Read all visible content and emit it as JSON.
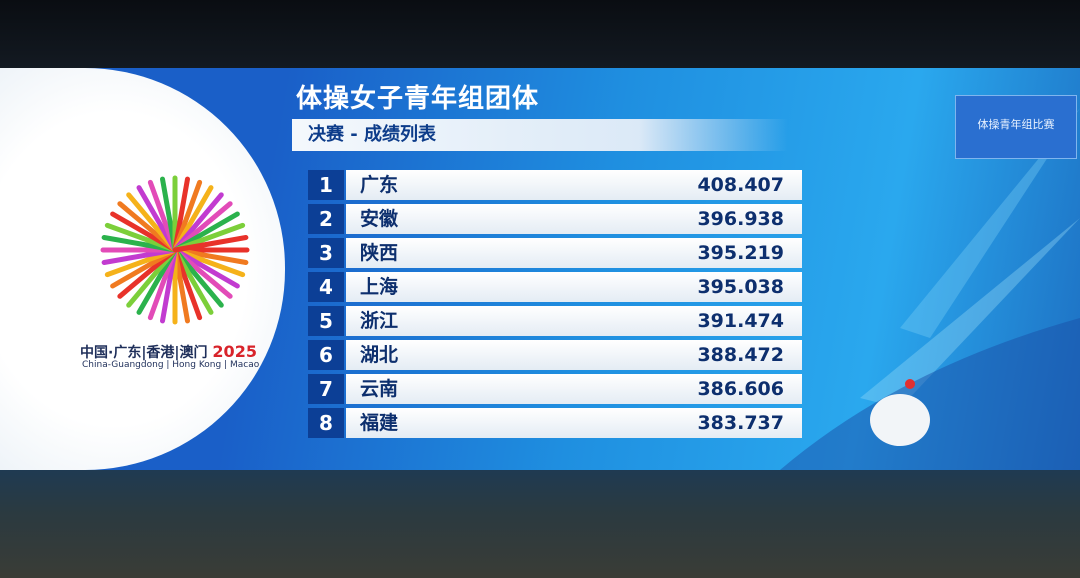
{
  "header": {
    "title": "体操女子青年组团体",
    "subtitle": "决赛 - 成绩列表"
  },
  "logo": {
    "line1": "中国·广东|香港|澳门",
    "year": "2025",
    "line2": "China-Guangdong | Hong Kong | Macao"
  },
  "screen": {
    "title": "体操青年组比赛"
  },
  "table": {
    "rows": [
      [
        1,
        "广东",
        "408.407"
      ],
      [
        2,
        "安徽",
        "396.938"
      ],
      [
        3,
        "陕西",
        "395.219"
      ],
      [
        4,
        "上海",
        "395.038"
      ],
      [
        5,
        "浙江",
        "391.474"
      ],
      [
        6,
        "湖北",
        "388.472"
      ],
      [
        7,
        "云南",
        "386.606"
      ],
      [
        8,
        "福建",
        "383.737"
      ]
    ]
  }
}
